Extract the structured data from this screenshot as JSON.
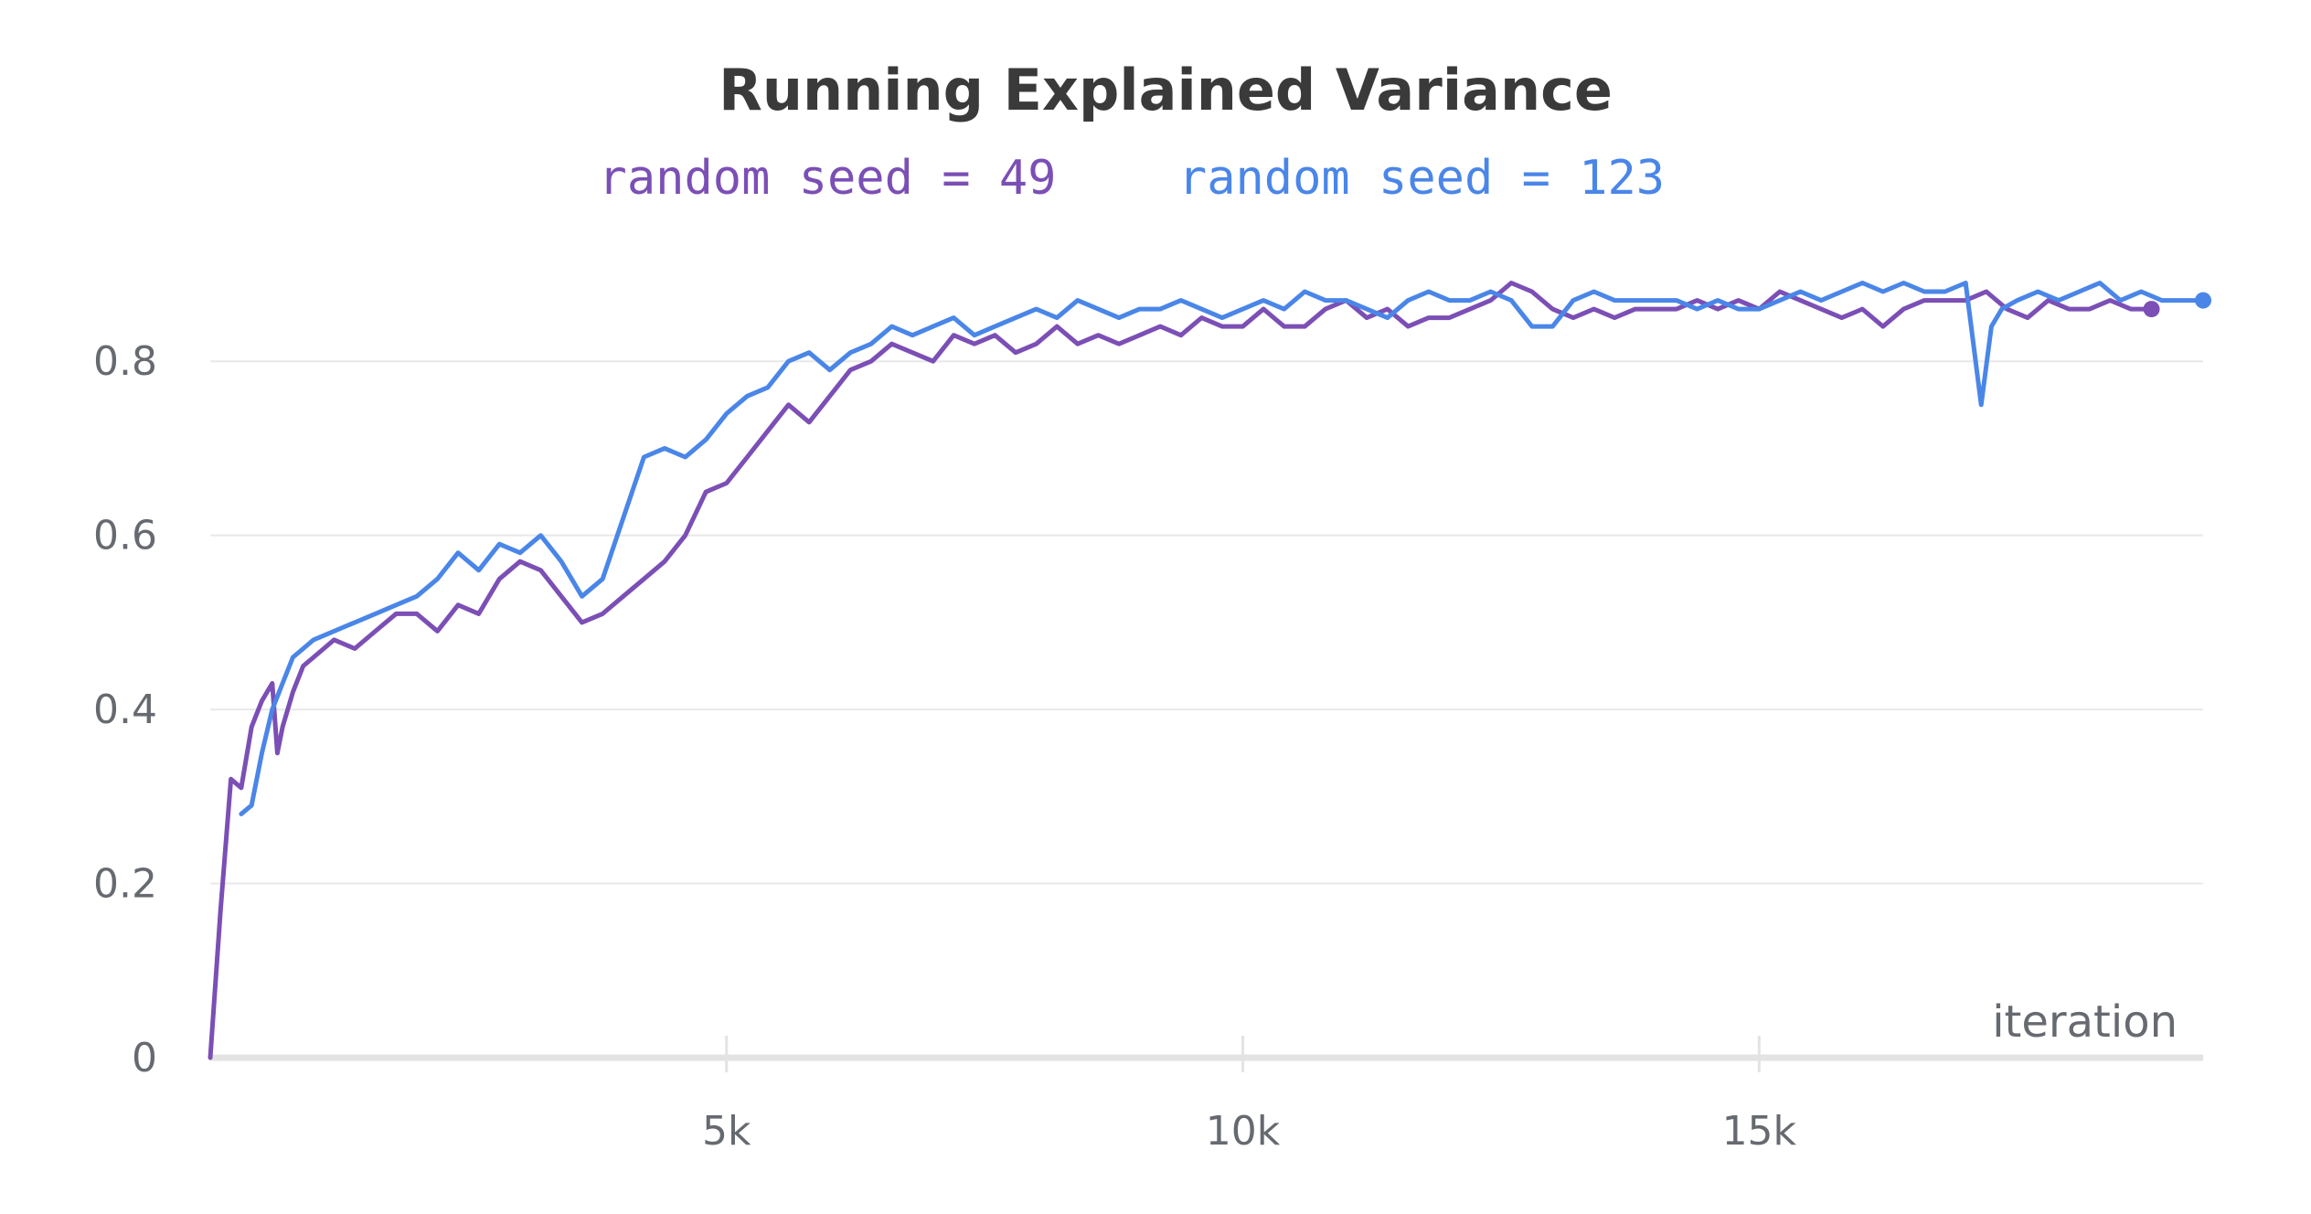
{
  "chart_data": {
    "type": "line",
    "title": "Running Explained Variance",
    "xlabel": "iteration",
    "ylabel": "",
    "xlim": [
      0,
      19300
    ],
    "ylim": [
      0,
      0.9
    ],
    "grid": true,
    "legend_position": "top-center",
    "y_ticks": [
      {
        "value": 0,
        "label": "0"
      },
      {
        "value": 0.2,
        "label": "0.2"
      },
      {
        "value": 0.4,
        "label": "0.4"
      },
      {
        "value": 0.6,
        "label": "0.6"
      },
      {
        "value": 0.8,
        "label": "0.8"
      }
    ],
    "x_ticks": [
      {
        "value": 5000,
        "label": "5k"
      },
      {
        "value": 10000,
        "label": "10k"
      },
      {
        "value": 15000,
        "label": "15k"
      }
    ],
    "series": [
      {
        "name": "random seed = 49",
        "color": "#7b4fb5",
        "x": [
          0,
          100,
          200,
          300,
          400,
          500,
          600,
          650,
          700,
          800,
          900,
          1000,
          1200,
          1400,
          1600,
          1800,
          2000,
          2200,
          2400,
          2600,
          2800,
          3000,
          3200,
          3400,
          3600,
          3800,
          4000,
          4200,
          4400,
          4600,
          4800,
          5000,
          5200,
          5400,
          5600,
          5800,
          6000,
          6200,
          6400,
          6600,
          6800,
          7000,
          7200,
          7400,
          7600,
          7800,
          8000,
          8200,
          8400,
          8600,
          8800,
          9000,
          9200,
          9400,
          9600,
          9800,
          10000,
          10200,
          10400,
          10600,
          10800,
          11000,
          11200,
          11400,
          11600,
          11800,
          12000,
          12200,
          12400,
          12600,
          12800,
          13000,
          13200,
          13400,
          13600,
          13800,
          14000,
          14200,
          14400,
          14600,
          14800,
          15000,
          15200,
          15400,
          15600,
          15800,
          16000,
          16200,
          16400,
          16600,
          16800,
          17000,
          17200,
          17400,
          17600,
          17800,
          18000,
          18200,
          18400,
          18600,
          18800
        ],
        "y": [
          0,
          0.17,
          0.32,
          0.31,
          0.38,
          0.41,
          0.43,
          0.35,
          0.38,
          0.42,
          0.45,
          0.46,
          0.48,
          0.47,
          0.49,
          0.51,
          0.51,
          0.49,
          0.52,
          0.51,
          0.55,
          0.57,
          0.56,
          0.53,
          0.5,
          0.51,
          0.53,
          0.55,
          0.57,
          0.6,
          0.65,
          0.66,
          0.69,
          0.72,
          0.75,
          0.73,
          0.76,
          0.79,
          0.8,
          0.82,
          0.81,
          0.8,
          0.83,
          0.82,
          0.83,
          0.81,
          0.82,
          0.84,
          0.82,
          0.83,
          0.82,
          0.83,
          0.84,
          0.83,
          0.85,
          0.84,
          0.84,
          0.86,
          0.84,
          0.84,
          0.86,
          0.87,
          0.85,
          0.86,
          0.84,
          0.85,
          0.85,
          0.86,
          0.87,
          0.89,
          0.88,
          0.86,
          0.85,
          0.86,
          0.85,
          0.86,
          0.86,
          0.86,
          0.87,
          0.86,
          0.87,
          0.86,
          0.88,
          0.87,
          0.86,
          0.85,
          0.86,
          0.84,
          0.86,
          0.87,
          0.87,
          0.87,
          0.88,
          0.86,
          0.85,
          0.87,
          0.86,
          0.86,
          0.87,
          0.86,
          0.86
        ]
      },
      {
        "name": "random seed = 123",
        "color": "#4a86e8",
        "x": [
          300,
          400,
          500,
          600,
          700,
          800,
          900,
          1000,
          1200,
          1400,
          1600,
          1800,
          2000,
          2200,
          2400,
          2600,
          2800,
          3000,
          3200,
          3400,
          3600,
          3800,
          4000,
          4200,
          4400,
          4600,
          4800,
          5000,
          5200,
          5400,
          5600,
          5800,
          6000,
          6200,
          6400,
          6600,
          6800,
          7000,
          7200,
          7400,
          7600,
          7800,
          8000,
          8200,
          8400,
          8600,
          8800,
          9000,
          9200,
          9400,
          9600,
          9800,
          10000,
          10200,
          10400,
          10600,
          10800,
          11000,
          11200,
          11400,
          11600,
          11800,
          12000,
          12200,
          12400,
          12600,
          12800,
          13000,
          13200,
          13400,
          13600,
          13800,
          14000,
          14200,
          14400,
          14600,
          14800,
          15000,
          15200,
          15400,
          15600,
          15800,
          16000,
          16200,
          16400,
          16600,
          16800,
          17000,
          17150,
          17250,
          17350,
          17500,
          17700,
          17900,
          18100,
          18300,
          18500,
          18700,
          18900,
          19100,
          19300
        ],
        "y": [
          0.28,
          0.29,
          0.35,
          0.4,
          0.43,
          0.46,
          0.47,
          0.48,
          0.49,
          0.5,
          0.51,
          0.52,
          0.53,
          0.55,
          0.58,
          0.56,
          0.59,
          0.58,
          0.6,
          0.57,
          0.53,
          0.55,
          0.62,
          0.69,
          0.7,
          0.69,
          0.71,
          0.74,
          0.76,
          0.77,
          0.8,
          0.81,
          0.79,
          0.81,
          0.82,
          0.84,
          0.83,
          0.84,
          0.85,
          0.83,
          0.84,
          0.85,
          0.86,
          0.85,
          0.87,
          0.86,
          0.85,
          0.86,
          0.86,
          0.87,
          0.86,
          0.85,
          0.86,
          0.87,
          0.86,
          0.88,
          0.87,
          0.87,
          0.86,
          0.85,
          0.87,
          0.88,
          0.87,
          0.87,
          0.88,
          0.87,
          0.84,
          0.84,
          0.87,
          0.88,
          0.87,
          0.87,
          0.87,
          0.87,
          0.86,
          0.87,
          0.86,
          0.86,
          0.87,
          0.88,
          0.87,
          0.88,
          0.89,
          0.88,
          0.89,
          0.88,
          0.88,
          0.89,
          0.75,
          0.84,
          0.86,
          0.87,
          0.88,
          0.87,
          0.88,
          0.89,
          0.87,
          0.88,
          0.87,
          0.87,
          0.87
        ]
      }
    ]
  }
}
